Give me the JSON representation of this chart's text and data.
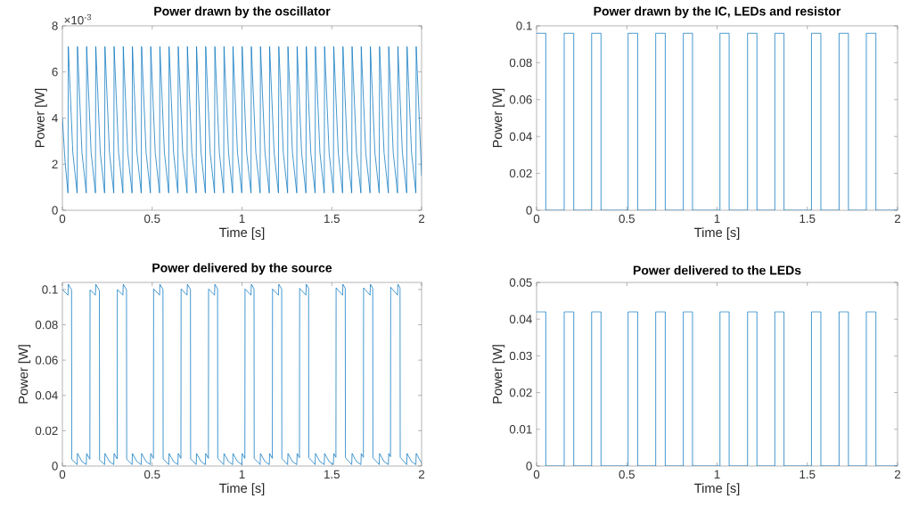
{
  "chart_data": [
    {
      "type": "line",
      "title": "Power drawn by the oscillator",
      "xlabel": "Time [s]",
      "ylabel": "Power [W]",
      "color": "#0072bd",
      "annotations": [
        "×10$^{-3}$"
      ],
      "x": [
        0,
        0.015,
        0.031,
        0.033,
        0.058,
        0.082,
        0.084,
        0.109,
        0.133,
        0.135,
        0.16,
        0.184,
        0.186,
        0.211,
        0.235,
        0.237,
        0.262,
        0.286,
        0.288,
        0.313,
        0.337,
        0.339,
        0.364,
        0.388,
        0.39,
        0.415,
        0.439,
        0.441,
        0.466,
        0.49,
        0.492,
        0.517,
        0.541,
        0.543,
        0.568,
        0.592,
        0.594,
        0.619,
        0.643,
        0.645,
        0.67,
        0.694,
        0.696,
        0.721,
        0.745,
        0.747,
        0.772,
        0.796,
        0.798,
        0.823,
        0.847,
        0.849,
        0.874,
        0.898,
        0.9,
        0.925,
        0.948,
        0.95,
        0.975,
        0.999,
        1.001,
        1.026,
        1.05,
        1.052,
        1.077,
        1.101,
        1.103,
        1.128,
        1.152,
        1.154,
        1.179,
        1.203,
        1.205,
        1.23,
        1.254,
        1.256,
        1.281,
        1.305,
        1.307,
        1.332,
        1.356,
        1.358,
        1.383,
        1.407,
        1.409,
        1.434,
        1.458,
        1.46,
        1.485,
        1.509,
        1.511,
        1.536,
        1.56,
        1.562,
        1.587,
        1.611,
        1.613,
        1.638,
        1.662,
        1.664,
        1.689,
        1.713,
        1.715,
        1.74,
        1.764,
        1.766,
        1.791,
        1.815,
        1.817,
        1.842,
        1.866,
        1.868,
        1.893,
        1.917,
        1.919,
        1.944,
        1.968,
        1.97,
        1.995,
        2
      ],
      "values": [
        4,
        2.1,
        0.75,
        7.1,
        2.5,
        0.75,
        7.1,
        2.5,
        0.75,
        7.1,
        2.5,
        0.75,
        7.1,
        2.5,
        0.75,
        7.1,
        2.5,
        0.75,
        7.1,
        2.5,
        0.75,
        7.1,
        2.5,
        0.75,
        7.1,
        2.5,
        0.75,
        7.1,
        2.5,
        0.75,
        7.1,
        2.5,
        0.75,
        7.1,
        2.5,
        0.75,
        7.1,
        2.5,
        0.75,
        7.1,
        2.5,
        0.75,
        7.1,
        2.5,
        0.75,
        7.1,
        2.5,
        0.75,
        7.1,
        2.5,
        0.75,
        7.1,
        2.5,
        0.75,
        7.1,
        2.5,
        0.75,
        7.1,
        2.5,
        0.75,
        7.1,
        2.5,
        0.75,
        7.1,
        2.5,
        0.75,
        7.1,
        2.5,
        0.75,
        7.1,
        2.5,
        0.75,
        7.1,
        2.5,
        0.75,
        7.1,
        2.5,
        0.75,
        7.1,
        2.5,
        0.75,
        7.1,
        2.5,
        0.75,
        7.1,
        2.5,
        0.75,
        7.1,
        2.5,
        0.75,
        7.1,
        2.5,
        0.75,
        7.1,
        2.5,
        0.75,
        7.1,
        2.5,
        0.75,
        7.1,
        2.5,
        0.75,
        7.1,
        2.5,
        0.75,
        7.1,
        2.5,
        0.75,
        7.1,
        2.5,
        0.75,
        7.1,
        2.5,
        0.75,
        7.1,
        2.5,
        0.75,
        7.1,
        2.5,
        1.5
      ],
      "xlim": [
        0,
        2
      ],
      "xticks": [
        0,
        0.5,
        1,
        1.5,
        2
      ],
      "ylim": [
        0,
        8
      ],
      "yticks": [
        0,
        2,
        4,
        6,
        8
      ]
    },
    {
      "type": "step",
      "title": "Power drawn by the IC, LEDs and resistor",
      "xlabel": "Time [s]",
      "ylabel": "Power [W]",
      "color": "#0072bd",
      "x": [
        0,
        0.051,
        0.153,
        0.206,
        0.305,
        0.357,
        0.507,
        0.56,
        0.66,
        0.713,
        0.813,
        0.864,
        1.016,
        1.067,
        1.169,
        1.221,
        1.32,
        1.371,
        1.523,
        1.575,
        1.676,
        1.728,
        1.827,
        1.88,
        2
      ],
      "values": [
        0.096,
        0,
        0.096,
        0,
        0.096,
        0,
        0.096,
        0,
        0.096,
        0,
        0.096,
        0,
        0.096,
        0,
        0.096,
        0,
        0.096,
        0,
        0.096,
        0,
        0.096,
        0,
        0.096,
        0,
        0
      ],
      "xlim": [
        0,
        2
      ],
      "xticks": [
        0,
        0.5,
        1,
        1.5,
        2
      ],
      "ylim": [
        0,
        0.1
      ],
      "yticks": [
        0,
        0.02,
        0.04,
        0.06,
        0.08,
        0.1
      ]
    },
    {
      "type": "line",
      "title": "Power delivered by the source",
      "xlabel": "Time [s]",
      "ylabel": "Power [W]",
      "color": "#0072bd",
      "x": [
        0,
        0.031,
        0.033,
        0.051,
        0.052,
        0.082,
        0.084,
        0.109,
        0.133,
        0.135,
        0.153,
        0.154,
        0.184,
        0.186,
        0.206,
        0.207,
        0.235,
        0.237,
        0.262,
        0.286,
        0.288,
        0.305,
        0.306,
        0.337,
        0.339,
        0.357,
        0.358,
        0.388,
        0.39,
        0.415,
        0.439,
        0.441,
        0.466,
        0.49,
        0.492,
        0.507,
        0.508,
        0.541,
        0.543,
        0.56,
        0.561,
        0.592,
        0.594,
        0.619,
        0.643,
        0.645,
        0.66,
        0.661,
        0.694,
        0.696,
        0.713,
        0.714,
        0.745,
        0.747,
        0.772,
        0.796,
        0.798,
        0.813,
        0.814,
        0.847,
        0.849,
        0.864,
        0.865,
        0.898,
        0.9,
        0.925,
        0.948,
        0.95,
        0.975,
        0.999,
        1.001,
        1.016,
        1.017,
        1.05,
        1.052,
        1.067,
        1.068,
        1.101,
        1.103,
        1.128,
        1.152,
        1.154,
        1.169,
        1.17,
        1.203,
        1.205,
        1.221,
        1.222,
        1.254,
        1.256,
        1.281,
        1.305,
        1.307,
        1.32,
        1.321,
        1.356,
        1.358,
        1.371,
        1.372,
        1.407,
        1.409,
        1.434,
        1.458,
        1.46,
        1.485,
        1.509,
        1.511,
        1.523,
        1.524,
        1.56,
        1.562,
        1.575,
        1.576,
        1.611,
        1.613,
        1.638,
        1.662,
        1.664,
        1.676,
        1.677,
        1.713,
        1.715,
        1.728,
        1.729,
        1.764,
        1.766,
        1.791,
        1.815,
        1.817,
        1.827,
        1.828,
        1.866,
        1.868,
        1.88,
        1.881,
        1.917,
        1.919,
        1.944,
        1.968,
        1.97,
        1.995,
        2
      ],
      "values": [
        0.1,
        0.0968,
        0.103,
        0.0998,
        0.0038,
        0.0008,
        0.0071,
        0.0025,
        0.0008,
        0.0071,
        0.0038,
        0.0998,
        0.0968,
        0.103,
        0.0994,
        0.0034,
        0.0008,
        0.0071,
        0.0025,
        0.0008,
        0.0071,
        0.004,
        0.1,
        0.0968,
        0.103,
        0.0998,
        0.0038,
        0.0008,
        0.0071,
        0.0025,
        0.0008,
        0.0071,
        0.0025,
        0.0008,
        0.0071,
        0.0043,
        0.1003,
        0.0968,
        0.103,
        0.1,
        0.004,
        0.0008,
        0.0071,
        0.0025,
        0.0008,
        0.0071,
        0.0043,
        0.1003,
        0.0968,
        0.103,
        0.1,
        0.004,
        0.0008,
        0.0071,
        0.0025,
        0.0008,
        0.0071,
        0.0043,
        0.1003,
        0.0968,
        0.103,
        0.1003,
        0.0043,
        0.0008,
        0.0071,
        0.0025,
        0.0008,
        0.0071,
        0.0025,
        0.0008,
        0.0071,
        0.0043,
        0.1003,
        0.0968,
        0.103,
        0.1003,
        0.0043,
        0.0008,
        0.0071,
        0.0025,
        0.0008,
        0.0071,
        0.0043,
        0.1003,
        0.0968,
        0.103,
        0.1002,
        0.0042,
        0.0008,
        0.0071,
        0.0025,
        0.0008,
        0.0071,
        0.0047,
        0.1007,
        0.0968,
        0.103,
        0.1007,
        0.0047,
        0.0008,
        0.0071,
        0.0025,
        0.0008,
        0.0071,
        0.0025,
        0.0008,
        0.0071,
        0.0049,
        0.1009,
        0.0968,
        0.103,
        0.1007,
        0.0047,
        0.0008,
        0.0071,
        0.0025,
        0.0008,
        0.0071,
        0.0049,
        0.1009,
        0.0968,
        0.103,
        0.1007,
        0.0047,
        0.0008,
        0.0071,
        0.0025,
        0.0008,
        0.0071,
        0.0053,
        0.1013,
        0.0968,
        0.103,
        0.1009,
        0.0049,
        0.0008,
        0.0071,
        0.0025,
        0.0008,
        0.0071,
        0.0025,
        0.002
      ],
      "xlim": [
        0,
        2
      ],
      "xticks": [
        0,
        0.5,
        1,
        1.5,
        2
      ],
      "ylim": [
        0,
        0.104
      ],
      "yticks": [
        0,
        0.02,
        0.04,
        0.06,
        0.08,
        0.1
      ]
    },
    {
      "type": "step",
      "title": "Power delivered to the LEDs",
      "xlabel": "Time [s]",
      "ylabel": "Power [W]",
      "color": "#0072bd",
      "x": [
        0,
        0.051,
        0.153,
        0.206,
        0.305,
        0.357,
        0.507,
        0.56,
        0.66,
        0.713,
        0.813,
        0.864,
        1.016,
        1.067,
        1.169,
        1.221,
        1.32,
        1.371,
        1.523,
        1.575,
        1.676,
        1.728,
        1.827,
        1.88,
        2
      ],
      "values": [
        0.042,
        0,
        0.042,
        0,
        0.042,
        0,
        0.042,
        0,
        0.042,
        0,
        0.042,
        0,
        0.042,
        0,
        0.042,
        0,
        0.042,
        0,
        0.042,
        0,
        0.042,
        0,
        0.042,
        0,
        0
      ],
      "xlim": [
        0,
        2
      ],
      "xticks": [
        0,
        0.5,
        1,
        1.5,
        2
      ],
      "ylim": [
        0,
        0.05
      ],
      "yticks": [
        0,
        0.01,
        0.02,
        0.03,
        0.04,
        0.05
      ]
    }
  ]
}
